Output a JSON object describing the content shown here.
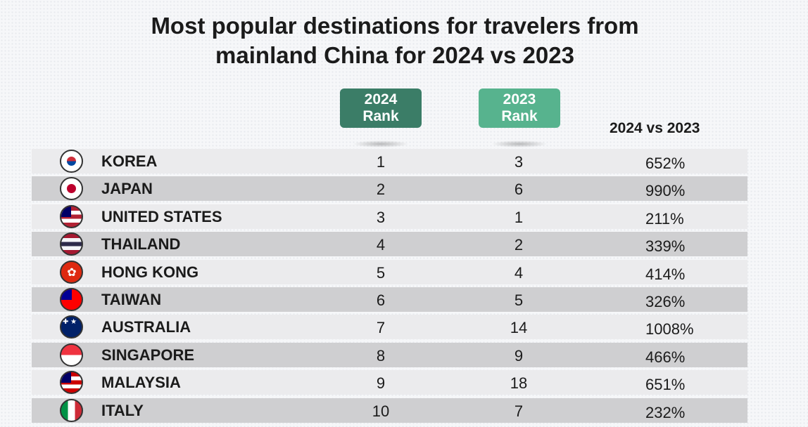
{
  "title_line1": "Most popular destinations for travelers from",
  "title_line2": "mainland China for 2024 vs 2023",
  "colors": {
    "badge_2024": "#3b7d67",
    "badge_2023": "#57b38e",
    "row_light": "#ebebed",
    "row_dark": "#cfcfd1"
  },
  "chart_data": {
    "type": "table",
    "columns": [
      {
        "year": "2024",
        "label": "Rank"
      },
      {
        "year": "2023",
        "label": "Rank"
      },
      {
        "label": "2024 vs 2023"
      }
    ],
    "rows": [
      {
        "country": "KOREA",
        "rank_2024": "1",
        "rank_2023": "3",
        "change": "652%",
        "flag": [
          "#ffffff",
          "#ffffff",
          "#ffffff"
        ]
      },
      {
        "country": "JAPAN",
        "rank_2024": "2",
        "rank_2023": "6",
        "change": "990%",
        "flag": [
          "#ffffff",
          "#ffffff",
          "#ffffff"
        ]
      },
      {
        "country": "UNITED STATES",
        "rank_2024": "3",
        "rank_2023": "1",
        "change": "211%",
        "flag": [
          "#b22234",
          "#ffffff",
          "#b22234",
          "#ffffff",
          "#b22234"
        ]
      },
      {
        "country": "THAILAND",
        "rank_2024": "4",
        "rank_2023": "2",
        "change": "339%",
        "flag": [
          "#a51931",
          "#f4f5f8",
          "#2d2a4a",
          "#f4f5f8",
          "#a51931"
        ]
      },
      {
        "country": "HONG KONG",
        "rank_2024": "5",
        "rank_2023": "4",
        "change": "414%",
        "flag": [
          "#de2910"
        ]
      },
      {
        "country": "TAIWAN",
        "rank_2024": "6",
        "rank_2023": "5",
        "change": "326%",
        "flag": [
          "#fe0000"
        ]
      },
      {
        "country": "AUSTRALIA",
        "rank_2024": "7",
        "rank_2023": "14",
        "change": "1008%",
        "flag": [
          "#012169"
        ]
      },
      {
        "country": "SINGAPORE",
        "rank_2024": "8",
        "rank_2023": "9",
        "change": "466%",
        "flag": [
          "#ef3340",
          "#ffffff"
        ]
      },
      {
        "country": "MALAYSIA",
        "rank_2024": "9",
        "rank_2023": "18",
        "change": "651%",
        "flag": [
          "#cc0001",
          "#ffffff",
          "#cc0001",
          "#ffffff",
          "#cc0001"
        ]
      },
      {
        "country": "ITALY",
        "rank_2024": "10",
        "rank_2023": "7",
        "change": "232%",
        "flag": [
          "#009246",
          "#ffffff",
          "#ce2b37"
        ],
        "vertical": true
      }
    ]
  }
}
